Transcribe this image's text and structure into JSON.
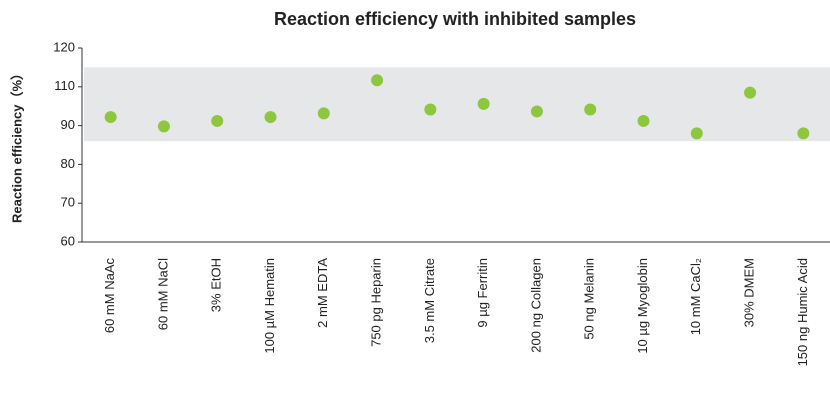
{
  "chart_data": {
    "type": "dot",
    "title": "Reaction efficiency with inhibited samples",
    "y_label": "Reaction efficiency（%）",
    "categories": [
      "60 mM NaAc",
      "60 mM NaCl",
      "3% EtOH",
      "100 µM Hematin",
      "2 mM EDTA",
      "750 pg Heparin",
      "3.5 mM Citrate",
      "9 µg Ferritin",
      "200 ng Collagen",
      "50 ng Melanin",
      "10 µg Myoglobin",
      "10 mM CaCl₂",
      "30% DMEM",
      "150 ng Humic Acid"
    ],
    "values": [
      94.4,
      89.8,
      92.4,
      94.4,
      96.3,
      111.7,
      98.3,
      101.2,
      97.3,
      98.3,
      92.4,
      88,
      107,
      88
    ],
    "color": "#8dc63f",
    "band": [
      86,
      115
    ],
    "band_color": "#e6e7e8",
    "ylim": [
      60,
      120
    ],
    "yticks": [
      60,
      70,
      80,
      90,
      110,
      120
    ]
  }
}
